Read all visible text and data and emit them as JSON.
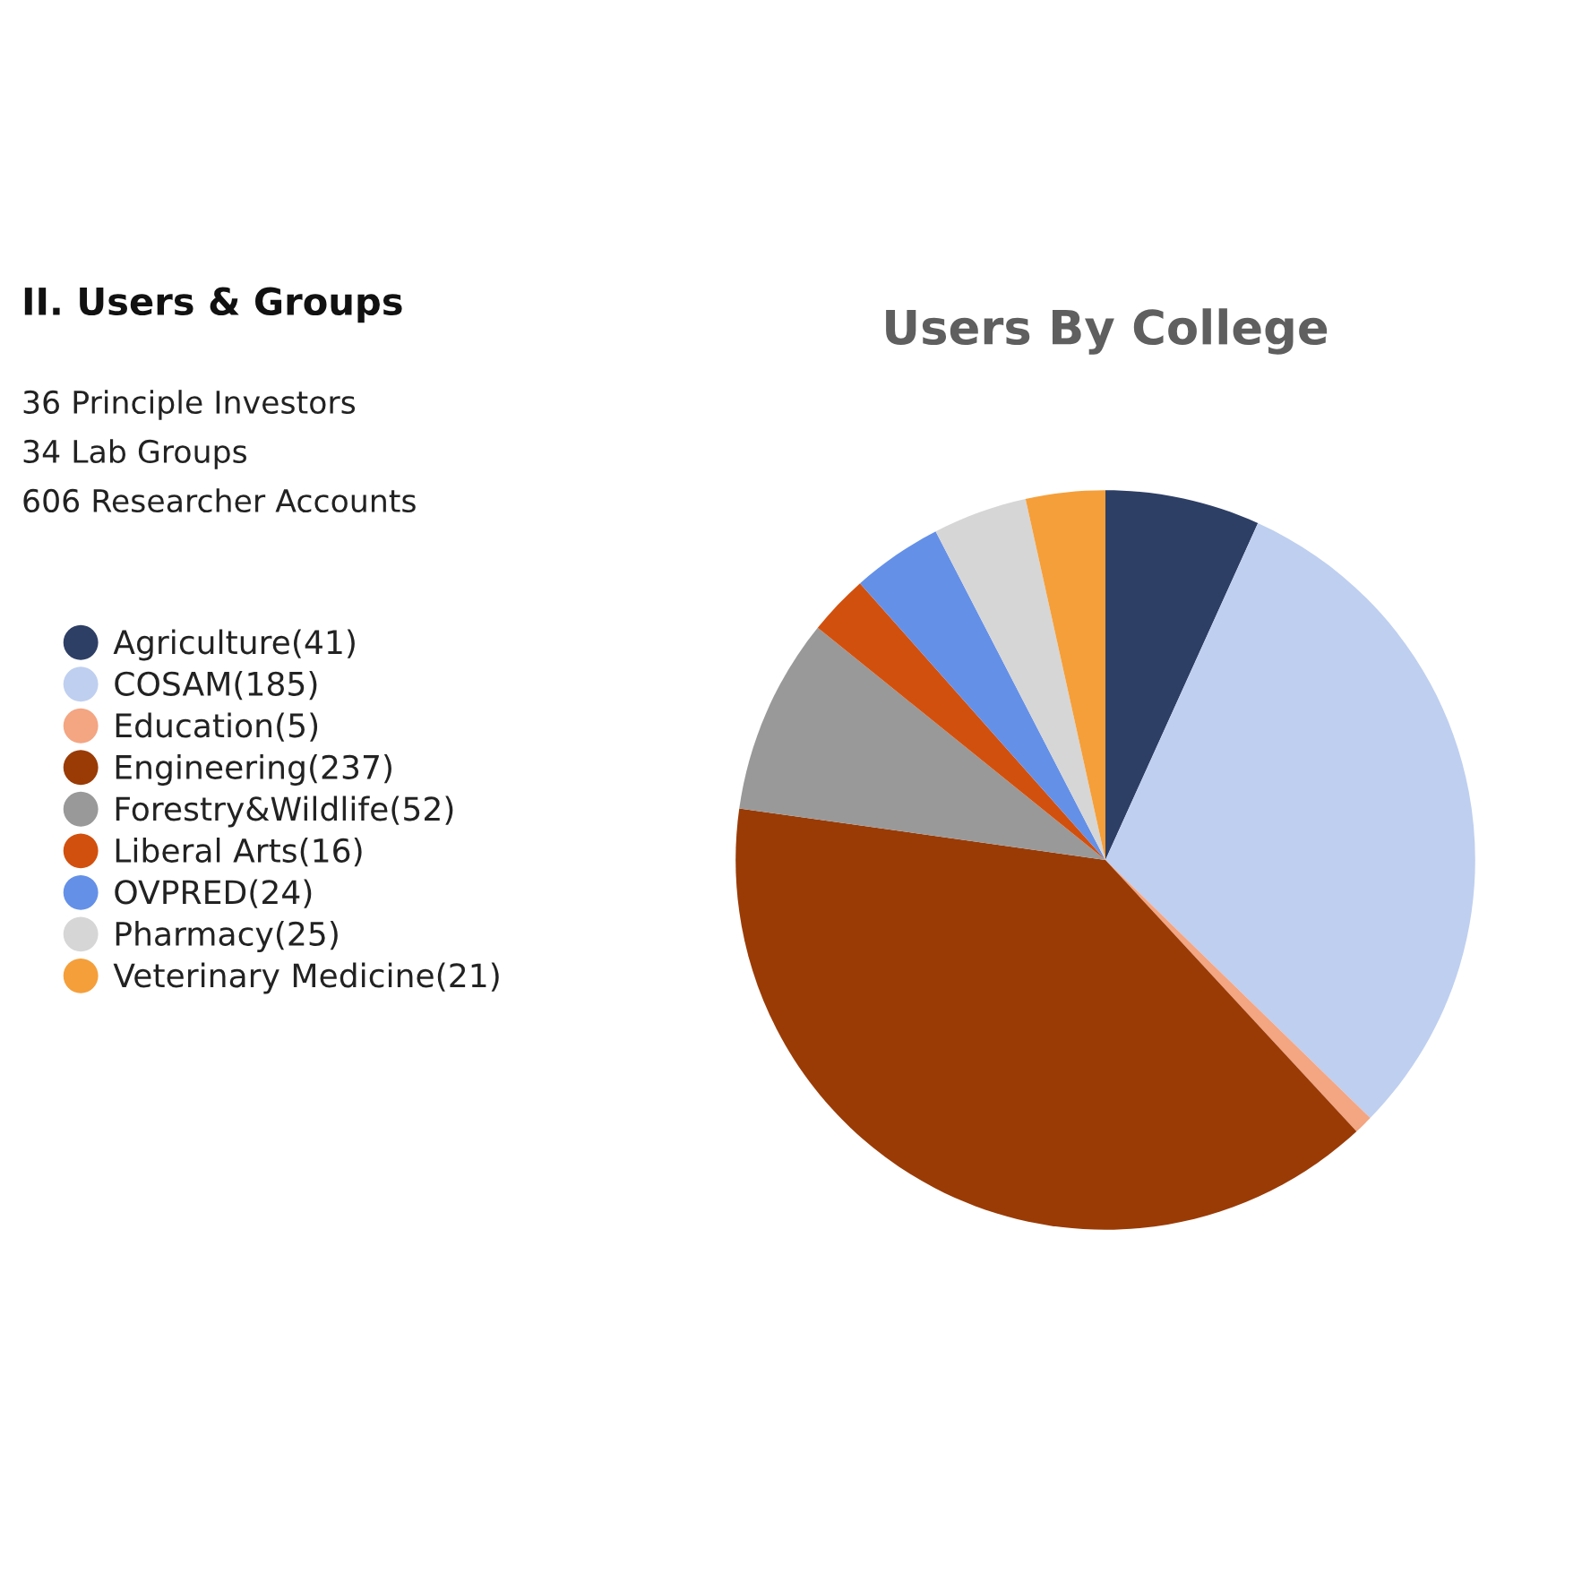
{
  "chart_data": {
    "type": "pie",
    "title": "Users By College",
    "categories": [
      "Agriculture(41)",
      "COSAM(185)",
      "Education(5)",
      "Engineering(237)",
      "Forestry&Wildlife(52)",
      "Liberal Arts(16)",
      "OVPRED(24)",
      "Pharmacy(25)",
      "Veterinary Medicine(21)"
    ],
    "values": [
      41,
      185,
      5,
      237,
      52,
      16,
      24,
      25,
      21
    ],
    "colors": [
      "#2e3f66",
      "#bfcff0",
      "#f4a582",
      "#9a3b06",
      "#999999",
      "#d2500e",
      "#6490e8",
      "#d6d6d6",
      "#f59f3a"
    ],
    "legend": "left",
    "annotations": [
      "II. Users & Groups",
      "36 Principle Investors",
      "34 Lab Groups",
      "606 Researcher Accounts"
    ]
  }
}
